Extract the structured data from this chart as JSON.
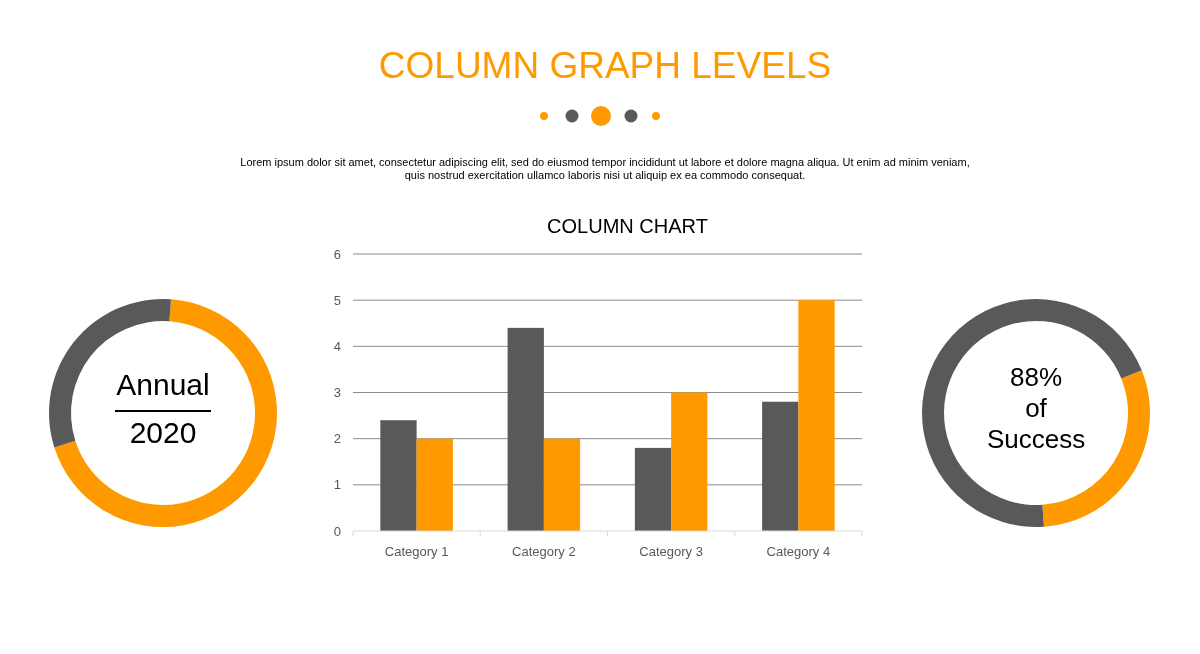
{
  "chart_data": [
    {
      "type": "other",
      "title": "COLUMN GRAPH LEVELS",
      "subtitle": "Lorem ipsum dolor sit amet, consectetur adipiscing elit, sed do eiusmod tempor incididunt ut labore et dolore magna aliqua. Ut enim ad minim veniam, quis nostrud exercitation ullamco laboris nisi ut aliquip ex ea commodo consequat."
    },
    {
      "type": "donut",
      "categories": [
        null,
        null
      ],
      "values": [
        69,
        31
      ],
      "colors": [
        "#fe9a00",
        "#595959"
      ],
      "annotations": [
        "Annual",
        "2020"
      ]
    },
    {
      "type": "bar",
      "title": "COLUMN CHART",
      "categories": [
        "Category 1",
        "Category 2",
        "Category 3",
        "Category 4"
      ],
      "ylim": [
        0,
        6
      ],
      "yticks": [
        0,
        1,
        2,
        3,
        4,
        5,
        6
      ],
      "grid": "y",
      "series": [
        {
          "color": "#595959",
          "values": [
            2.4,
            4.4,
            1.8,
            2.8
          ]
        },
        {
          "color": "#fe9a00",
          "values": [
            2,
            2,
            3,
            5
          ]
        }
      ]
    },
    {
      "type": "donut",
      "categories": [
        null,
        null
      ],
      "values": [
        30,
        70
      ],
      "colors": [
        "#fe9a00",
        "#595959"
      ],
      "annotations": [
        "88%",
        "of",
        "Success"
      ]
    }
  ]
}
